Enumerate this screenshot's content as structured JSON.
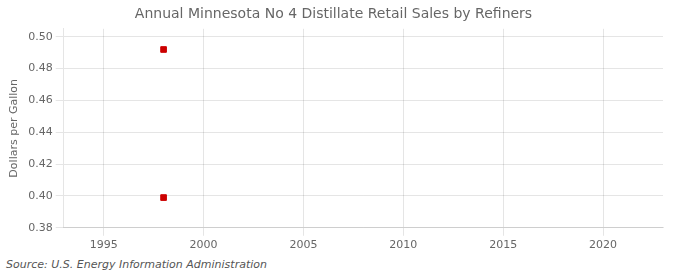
{
  "chart_data": {
    "type": "scatter",
    "title": "Annual Minnesota No 4 Distillate Retail Sales by Refiners",
    "ylabel": "Dollars per Gallon",
    "annotations": [
      "Source: U.S. Energy Information Administration"
    ],
    "x": [
      1998,
      1998
    ],
    "values": [
      0.492,
      0.399
    ],
    "color": "#cc0000",
    "marker": "square",
    "xlim": [
      1993,
      2023
    ],
    "xticks": [
      1995,
      2000,
      2005,
      2010,
      2015,
      2020
    ],
    "ylim": [
      0.38,
      0.505
    ],
    "yticks": [
      0.38,
      {
        "value": 0.4,
        "label": "0.40"
      },
      0.42,
      0.44,
      0.46,
      0.48,
      {
        "value": 0.5,
        "label": "0.50"
      }
    ],
    "grid": true
  }
}
